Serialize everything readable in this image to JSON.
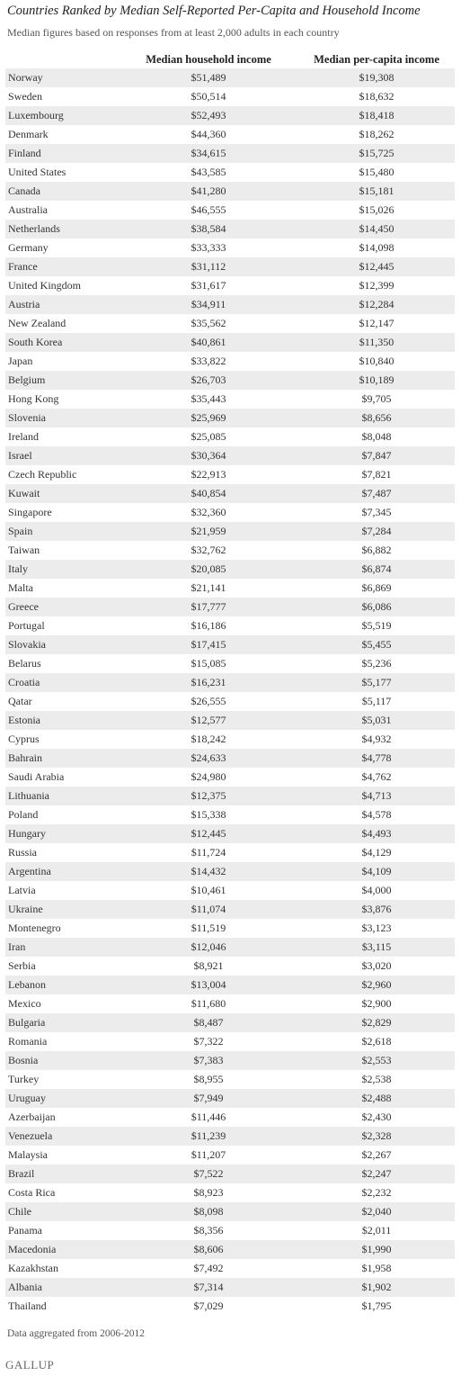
{
  "header": {
    "title": "Countries Ranked by Median Self-Reported Per-Capita and Household Income",
    "subtitle": "Median figures based on responses from at least 2,000 adults in each country"
  },
  "table": {
    "columns": [
      "",
      "Median household income",
      "Median per-capita income"
    ],
    "rows": [
      [
        "Norway",
        "$51,489",
        "$19,308"
      ],
      [
        "Sweden",
        "$50,514",
        "$18,632"
      ],
      [
        "Luxembourg",
        "$52,493",
        "$18,418"
      ],
      [
        "Denmark",
        "$44,360",
        "$18,262"
      ],
      [
        "Finland",
        "$34,615",
        "$15,725"
      ],
      [
        "United States",
        "$43,585",
        "$15,480"
      ],
      [
        "Canada",
        "$41,280",
        "$15,181"
      ],
      [
        "Australia",
        "$46,555",
        "$15,026"
      ],
      [
        "Netherlands",
        "$38,584",
        "$14,450"
      ],
      [
        "Germany",
        "$33,333",
        "$14,098"
      ],
      [
        "France",
        "$31,112",
        "$12,445"
      ],
      [
        "United Kingdom",
        "$31,617",
        "$12,399"
      ],
      [
        "Austria",
        "$34,911",
        "$12,284"
      ],
      [
        "New Zealand",
        "$35,562",
        "$12,147"
      ],
      [
        "South Korea",
        "$40,861",
        "$11,350"
      ],
      [
        "Japan",
        "$33,822",
        "$10,840"
      ],
      [
        "Belgium",
        "$26,703",
        "$10,189"
      ],
      [
        "Hong Kong",
        "$35,443",
        "$9,705"
      ],
      [
        "Slovenia",
        "$25,969",
        "$8,656"
      ],
      [
        "Ireland",
        "$25,085",
        "$8,048"
      ],
      [
        "Israel",
        "$30,364",
        "$7,847"
      ],
      [
        "Czech Republic",
        "$22,913",
        "$7,821"
      ],
      [
        "Kuwait",
        "$40,854",
        "$7,487"
      ],
      [
        "Singapore",
        "$32,360",
        "$7,345"
      ],
      [
        "Spain",
        "$21,959",
        "$7,284"
      ],
      [
        "Taiwan",
        "$32,762",
        "$6,882"
      ],
      [
        "Italy",
        "$20,085",
        "$6,874"
      ],
      [
        "Malta",
        "$21,141",
        "$6,869"
      ],
      [
        "Greece",
        "$17,777",
        "$6,086"
      ],
      [
        "Portugal",
        "$16,186",
        "$5,519"
      ],
      [
        "Slovakia",
        "$17,415",
        "$5,455"
      ],
      [
        "Belarus",
        "$15,085",
        "$5,236"
      ],
      [
        "Croatia",
        "$16,231",
        "$5,177"
      ],
      [
        "Qatar",
        "$26,555",
        "$5,117"
      ],
      [
        "Estonia",
        "$12,577",
        "$5,031"
      ],
      [
        "Cyprus",
        "$18,242",
        "$4,932"
      ],
      [
        "Bahrain",
        "$24,633",
        "$4,778"
      ],
      [
        "Saudi Arabia",
        "$24,980",
        "$4,762"
      ],
      [
        "Lithuania",
        "$12,375",
        "$4,713"
      ],
      [
        "Poland",
        "$15,338",
        "$4,578"
      ],
      [
        "Hungary",
        "$12,445",
        "$4,493"
      ],
      [
        "Russia",
        "$11,724",
        "$4,129"
      ],
      [
        "Argentina",
        "$14,432",
        "$4,109"
      ],
      [
        "Latvia",
        "$10,461",
        "$4,000"
      ],
      [
        "Ukraine",
        "$11,074",
        "$3,876"
      ],
      [
        "Montenegro",
        "$11,519",
        "$3,123"
      ],
      [
        "Iran",
        "$12,046",
        "$3,115"
      ],
      [
        "Serbia",
        "$8,921",
        "$3,020"
      ],
      [
        "Lebanon",
        "$13,004",
        "$2,960"
      ],
      [
        "Mexico",
        "$11,680",
        "$2,900"
      ],
      [
        "Bulgaria",
        "$8,487",
        "$2,829"
      ],
      [
        "Romania",
        "$7,322",
        "$2,618"
      ],
      [
        "Bosnia",
        "$7,383",
        "$2,553"
      ],
      [
        "Turkey",
        "$8,955",
        "$2,538"
      ],
      [
        "Uruguay",
        "$7,949",
        "$2,488"
      ],
      [
        "Azerbaijan",
        "$11,446",
        "$2,430"
      ],
      [
        "Venezuela",
        "$11,239",
        "$2,328"
      ],
      [
        "Malaysia",
        "$11,207",
        "$2,267"
      ],
      [
        "Brazil",
        "$7,522",
        "$2,247"
      ],
      [
        "Costa Rica",
        "$8,923",
        "$2,232"
      ],
      [
        "Chile",
        "$8,098",
        "$2,040"
      ],
      [
        "Panama",
        "$8,356",
        "$2,011"
      ],
      [
        "Macedonia",
        "$8,606",
        "$1,990"
      ],
      [
        "Kazakhstan",
        "$7,492",
        "$1,958"
      ],
      [
        "Albania",
        "$7,314",
        "$1,902"
      ],
      [
        "Thailand",
        "$7,029",
        "$1,795"
      ]
    ]
  },
  "footer": {
    "note": "Data aggregated from 2006-2012",
    "brand": "GALLUP"
  }
}
